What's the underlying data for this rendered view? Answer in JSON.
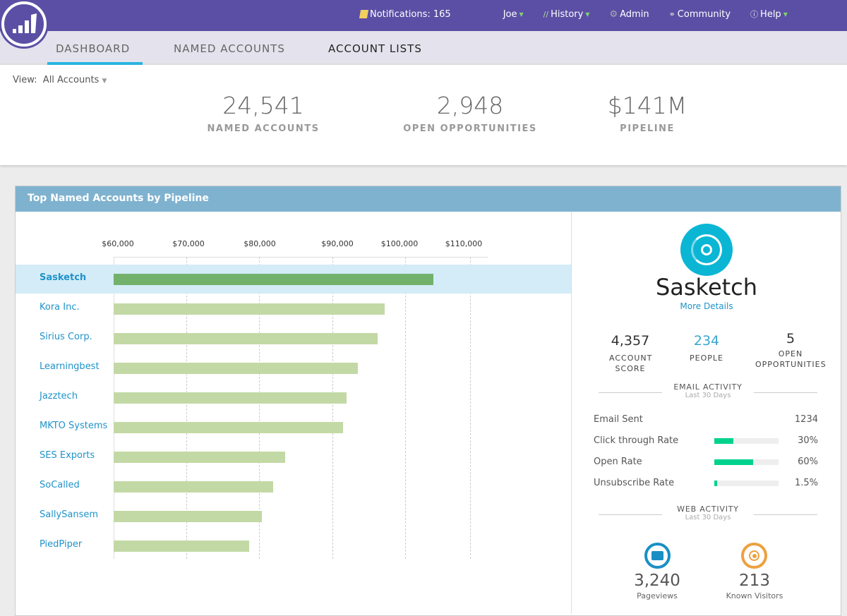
{
  "topbar": {
    "notifications": "Notifications: 165",
    "user": "Joe",
    "history": "History",
    "admin": "Admin",
    "community": "Community",
    "help": "Help"
  },
  "tabs": [
    "DASHBOARD",
    "NAMED ACCOUNTS",
    "ACCOUNT LISTS"
  ],
  "view": {
    "label": "View:",
    "value": "All Accounts"
  },
  "kpis": [
    {
      "value": "24,541",
      "label": "NAMED ACCOUNTS"
    },
    {
      "value": "2,948",
      "label": "OPEN OPPORTUNITIES"
    },
    {
      "value": "$141M",
      "label": "PIPELINE"
    }
  ],
  "panel_title": "Top Named Accounts by Pipeline",
  "chart_data": {
    "type": "bar",
    "orientation": "horizontal",
    "xlim": [
      60000,
      110000
    ],
    "ticks": [
      "$60,000",
      "$70,000",
      "$80,000",
      "$90,000",
      "$100,000",
      "$110,000"
    ],
    "categories": [
      "Sasketch",
      "Kora Inc.",
      "Sirius Corp.",
      "Learningbest",
      "Jazztech",
      "MKTO Systems",
      "SES Exports",
      "SoCalled",
      "SallySansem",
      "PiedPiper"
    ],
    "values": [
      104300,
      97200,
      96200,
      93500,
      91900,
      91500,
      83600,
      81900,
      80400,
      78600
    ],
    "selected": "Sasketch",
    "colors": {
      "bar": "#c3d9a5",
      "selected": "#72b16c"
    }
  },
  "detail": {
    "name": "Sasketch",
    "more": "More Details",
    "stats": [
      {
        "value": "4,357",
        "label": "ACCOUNT SCORE"
      },
      {
        "value": "234",
        "label": "PEOPLE"
      },
      {
        "value": "5",
        "label": "OPEN OPPORTUNITIES"
      }
    ],
    "email": {
      "title": "EMAIL ACTIVITY",
      "sub": "Last 30 Days",
      "rows": [
        {
          "label": "Email Sent",
          "value": "1234"
        },
        {
          "label": "Click through Rate",
          "value": "30%",
          "pct": 30
        },
        {
          "label": "Open Rate",
          "value": "60%",
          "pct": 60
        },
        {
          "label": "Unsubscribe Rate",
          "value": "1.5%",
          "pct": 1.5
        }
      ]
    },
    "web": {
      "title": "WEB ACTIVITY",
      "sub": "Last 30 Days",
      "pageviews": "3,240",
      "pageviews_label": "Pageviews",
      "visitors": "213",
      "visitors_label": "Known Visitors"
    }
  }
}
